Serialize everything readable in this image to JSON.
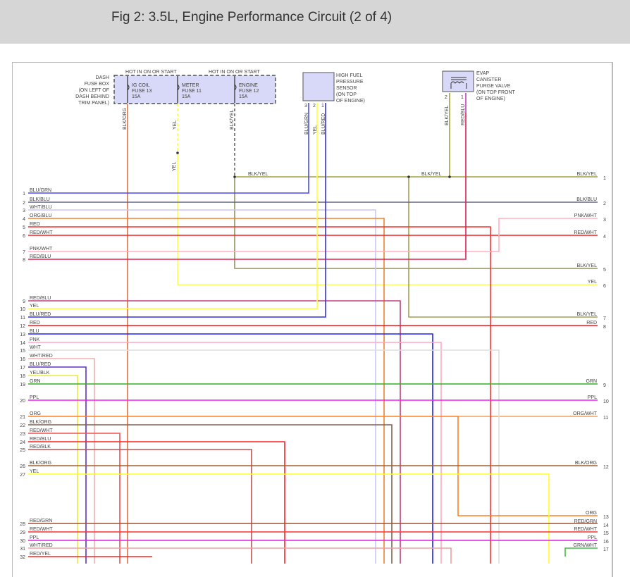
{
  "title": "Fig 2: 3.5L, Engine Performance Circuit (2 of 4)",
  "fuse_box": {
    "label": [
      "DASH",
      "FUSE BOX",
      "(ON LEFT OF",
      "DASH BEHIND",
      "TRIM PANEL)"
    ],
    "hot1": "HOT IN ON OR START",
    "hot2": "HOT IN ON OR START",
    "fuses": [
      {
        "lines": [
          "IG COIL",
          "FUSE 13",
          "15A"
        ],
        "wire": "BLK/ORG"
      },
      {
        "lines": [
          "METER",
          "FUSE 11",
          "15A"
        ],
        "wire": "YEL"
      },
      {
        "lines": [
          "ENGINE",
          "FUSE 12",
          "15A"
        ],
        "wire": "BLK/YEL"
      }
    ],
    "yel_lower_label": "YEL"
  },
  "sensor": {
    "label": [
      "HIGH FUEL",
      "PRESSURE",
      "SENSOR",
      "(ON TOP",
      "OF ENGINE)"
    ],
    "pins": [
      "3",
      "2",
      "1"
    ],
    "wires": [
      "BLU/GRN",
      "YEL",
      "BLU/RED"
    ]
  },
  "evap": {
    "label": [
      "EVAP",
      "CANISTER",
      "PURGE VALVE",
      "(ON TOP FRONT",
      "OF ENGINE)"
    ],
    "pins": [
      "2",
      "1"
    ],
    "wires": [
      "BLK/YEL",
      "RED/BLU"
    ]
  },
  "bus_labels": [
    "BLK/YEL",
    "BLK/YEL"
  ],
  "left_wires": [
    {
      "pin": "1",
      "label": "BLU/GRN",
      "color": "#4a4af0"
    },
    {
      "pin": "2",
      "label": "BLK/BLU",
      "color": "#666680"
    },
    {
      "pin": "3",
      "label": "WHT/BLU",
      "color": "#c8c8f0"
    },
    {
      "pin": "4",
      "label": "ORG/BLU",
      "color": "#f08030"
    },
    {
      "pin": "5",
      "label": "RED",
      "color": "#ff3030"
    },
    {
      "pin": "6",
      "label": "RED/WHT",
      "color": "#f02020"
    },
    {
      "pin": "7",
      "label": "PNK/WHT",
      "color": "#ffb0c0"
    },
    {
      "pin": "8",
      "label": "RED/BLU",
      "color": "#e02050"
    },
    {
      "pin": "9",
      "label": "RED/BLU",
      "color": "#c04080"
    },
    {
      "pin": "10",
      "label": "YEL",
      "color": "#ffff30"
    },
    {
      "pin": "11",
      "label": "BLU/RED",
      "color": "#3030e0"
    },
    {
      "pin": "12",
      "label": "RED",
      "color": "#ff1010"
    },
    {
      "pin": "13",
      "label": "BLU",
      "color": "#2020f0"
    },
    {
      "pin": "14",
      "label": "PNK",
      "color": "#ffa8c0"
    },
    {
      "pin": "15",
      "label": "WHT",
      "color": "#dddddd"
    },
    {
      "pin": "16",
      "label": "WHT/RED",
      "color": "#f0b0b0"
    },
    {
      "pin": "17",
      "label": "BLU/RED",
      "color": "#6030c0"
    },
    {
      "pin": "18",
      "label": "YEL/BLK",
      "color": "#e8e840"
    },
    {
      "pin": "19",
      "label": "GRN",
      "color": "#30b020"
    },
    {
      "pin": "20",
      "label": "PPL",
      "color": "#f020f0"
    },
    {
      "pin": "21",
      "label": "ORG",
      "color": "#ff8020"
    },
    {
      "pin": "22",
      "label": "BLK/ORG",
      "color": "#806050"
    },
    {
      "pin": "23",
      "label": "RED/WHT",
      "color": "#f05050"
    },
    {
      "pin": "24",
      "label": "RED/BLU",
      "color": "#ff2020"
    },
    {
      "pin": "25",
      "label": "RED/BLK",
      "color": "#c05050"
    },
    {
      "pin": "26",
      "label": "BLK/ORG",
      "color": "#a06030"
    },
    {
      "pin": "27",
      "label": "YEL",
      "color": "#ffff20"
    },
    {
      "pin": "28",
      "label": "RED/GRN",
      "color": "#a05030"
    },
    {
      "pin": "29",
      "label": "RED/WHT",
      "color": "#ff3030"
    },
    {
      "pin": "30",
      "label": "PPL",
      "color": "#e020e0"
    },
    {
      "pin": "31",
      "label": "WHT/RED",
      "color": "#f0a0a0"
    },
    {
      "pin": "32",
      "label": "RED/YEL",
      "color": "#ff2020"
    }
  ],
  "right_wires": [
    {
      "pin": "1",
      "label": "BLK/YEL",
      "color": "#a0a040"
    },
    {
      "pin": "2",
      "label": "BLK/BLU",
      "color": "#555577"
    },
    {
      "pin": "3",
      "label": "PNK/WHT",
      "color": "#ffb0c0"
    },
    {
      "pin": "4",
      "label": "RED/WHT",
      "color": "#e02020"
    },
    {
      "pin": "5",
      "label": "BLK/YEL",
      "color": "#909060"
    },
    {
      "pin": "6",
      "label": "YEL",
      "color": "#ffff30"
    },
    {
      "pin": "7",
      "label": "BLK/YEL",
      "color": "#a0a050"
    },
    {
      "pin": "8",
      "label": "RED",
      "color": "#ff1010"
    },
    {
      "pin": "9",
      "label": "GRN",
      "color": "#30b020"
    },
    {
      "pin": "10",
      "label": "PPL",
      "color": "#f020f0"
    },
    {
      "pin": "11",
      "label": "ORG/WHT",
      "color": "#f0a060"
    },
    {
      "pin": "12",
      "label": "BLK/ORG",
      "color": "#a06030"
    },
    {
      "pin": "13",
      "label": "ORG",
      "color": "#ff8020"
    },
    {
      "pin": "14",
      "label": "RED/GRN",
      "color": "#a05030"
    },
    {
      "pin": "15",
      "label": "RED/WHT",
      "color": "#ff3030"
    },
    {
      "pin": "16",
      "label": "PPL",
      "color": "#e020e0"
    },
    {
      "pin": "17",
      "label": "GRN/WHT",
      "color": "#40c040"
    }
  ]
}
